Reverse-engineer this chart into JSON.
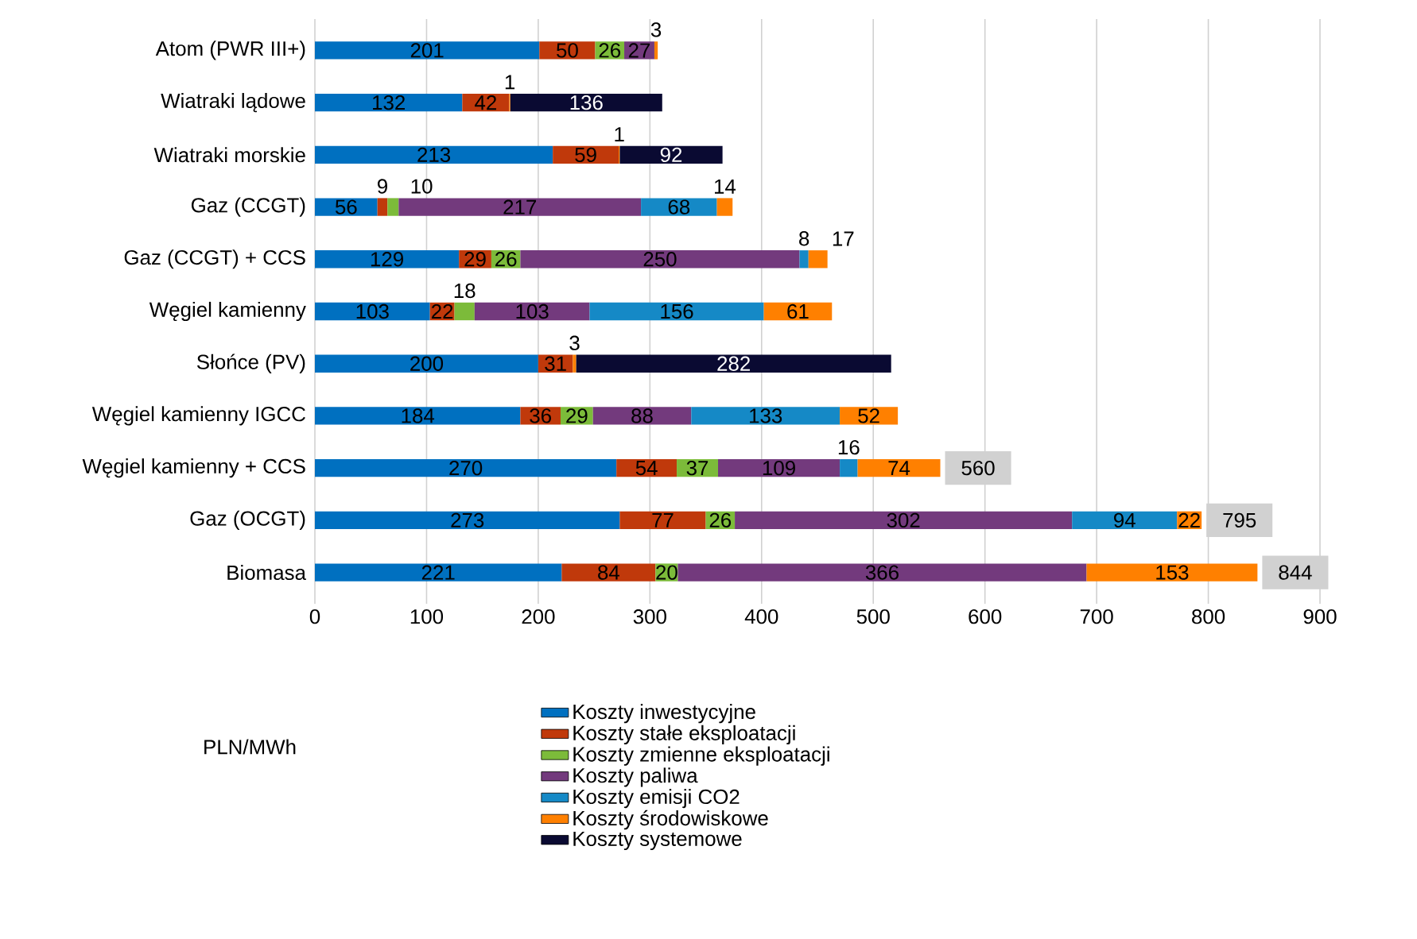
{
  "chart_data": {
    "type": "bar",
    "orientation": "horizontal",
    "stacked": true,
    "data_labels": true,
    "grid": "x",
    "legend": "bottom",
    "annotations": [
      "PLN/MWh"
    ],
    "categories": [
      "Atom (PWR III+)",
      "Wiatraki lądowe",
      "Wiatraki morskie",
      "Gaz (CCGT)",
      "Gaz (CCGT) + CCS",
      "Węgiel kamienny",
      "Słońce (PV)",
      "Węgiel kamienny IGCC",
      "Węgiel kamienny + CCS",
      "Gaz (OCGT)",
      "Biomasa"
    ],
    "series": [
      {
        "name": "Koszty inwestycyjne",
        "color": "#0070c0",
        "values": [
          201,
          132,
          213,
          56,
          129,
          103,
          200,
          184,
          270,
          273,
          221
        ]
      },
      {
        "name": "Koszty stałe eksploatacji",
        "color": "#c0390b",
        "values": [
          50,
          42,
          59,
          9,
          29,
          22,
          31,
          36,
          54,
          77,
          84
        ]
      },
      {
        "name": "Koszty zmienne eksploatacji",
        "color": "#7cbb3a",
        "values": [
          26,
          null,
          null,
          10,
          26,
          18,
          null,
          29,
          37,
          26,
          20
        ]
      },
      {
        "name": "Koszty paliwa",
        "color": "#733a7d",
        "values": [
          27,
          null,
          null,
          217,
          250,
          103,
          null,
          88,
          109,
          302,
          366
        ]
      },
      {
        "name": "Koszty emisji CO2",
        "color": "#1589c6",
        "values": [
          null,
          null,
          null,
          68,
          8,
          156,
          null,
          133,
          16,
          94,
          null
        ]
      },
      {
        "name": "Koszty środowiskowe",
        "color": "#ff8000",
        "values": [
          3,
          1,
          1,
          14,
          17,
          61,
          3,
          52,
          74,
          22,
          153
        ]
      },
      {
        "name": "Koszty systemowe",
        "color": "#0a0a32",
        "values": [
          null,
          136,
          92,
          null,
          null,
          null,
          282,
          null,
          null,
          null,
          null
        ]
      }
    ],
    "totals": [
      null,
      null,
      null,
      null,
      null,
      null,
      null,
      null,
      "560",
      "795",
      "844"
    ],
    "xlim": [
      0,
      900
    ],
    "xticks": [
      0,
      100,
      200,
      300,
      400,
      500,
      600,
      700,
      800,
      900
    ]
  }
}
